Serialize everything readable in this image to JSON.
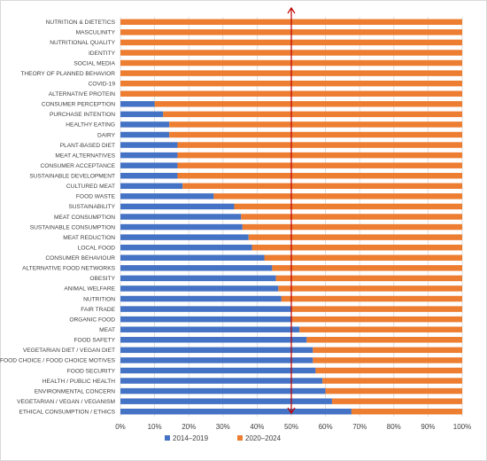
{
  "chart_data": {
    "type": "bar",
    "stacked": "percent",
    "orientation": "horizontal",
    "categories": [
      "NUTRITION & DIETETICS",
      "MASCULINITY",
      "NUTRITIONAL QUALITY",
      "IDENTITY",
      "SOCIAL MEDIA",
      "THEORY OF PLANNED BEHAVIOR",
      "COVID-19",
      "ALTERNATIVE PROTEIN",
      "CONSUMER PERCEPTION",
      "PURCHASE INTENTION",
      "HEALTHY EATING",
      "DAIRY",
      "PLANT-BASED DIET",
      "MEAT ALTERNATIVES",
      "CONSUMER ACCEPTANCE",
      "SUSTAINABLE DEVELOPMENT",
      "CULTURED MEAT",
      "FOOD WASTE",
      "SUSTAINABILITY",
      "MEAT CONSUMPTION",
      "SUSTAINABLE CONSUMPTION",
      "MEAT REDUCTION",
      "LOCAL FOOD",
      "CONSUMER BEHAVIOUR",
      "ALTERNATIVE FOOD NETWORKS",
      "OBESITY",
      "ANIMAL WELFARE",
      "NUTRITION",
      "FAIR TRADE",
      "ORGANIC FOOD",
      "MEAT",
      "FOOD SAFETY",
      "VEGETARIAN DIET / VEGAN DIET",
      "FOOD CHOICE / FOOD CHOICE MOTIVES",
      "FOOD SECURITY",
      "HEALTH / PUBLIC HEALTH",
      "ENVIRONMENTAL CONCERN",
      "VEGETARIAN / VEGAN / VEGANISM",
      "ETHICAL CONSUMPTION / ETHICS"
    ],
    "series": [
      {
        "name": "2014–2019",
        "color": "#4472C4",
        "values": [
          0,
          0,
          0,
          0,
          0,
          0,
          0,
          0,
          10,
          12.5,
          14.3,
          14.3,
          16.7,
          16.7,
          16.7,
          16.7,
          18.2,
          27.3,
          33.3,
          35.3,
          35.7,
          37.5,
          38.5,
          42.1,
          44.4,
          45.5,
          46.2,
          47.1,
          50,
          50,
          52.4,
          54.5,
          56.3,
          56.3,
          57.1,
          59.1,
          60,
          61.9,
          67.6
        ]
      },
      {
        "name": "2020–2024",
        "color": "#ED7D31",
        "values": [
          100,
          100,
          100,
          100,
          100,
          100,
          100,
          100,
          90,
          87.5,
          85.7,
          85.7,
          83.3,
          83.3,
          83.3,
          83.3,
          81.8,
          72.7,
          66.7,
          64.7,
          64.3,
          62.5,
          61.5,
          57.9,
          55.6,
          54.5,
          53.8,
          52.9,
          50,
          50,
          47.6,
          45.5,
          43.7,
          43.7,
          42.9,
          40.9,
          40,
          38.1,
          32.4
        ]
      }
    ],
    "x_ticks": [
      "0%",
      "10%",
      "20%",
      "30%",
      "40%",
      "50%",
      "60%",
      "70%",
      "80%",
      "90%",
      "100%"
    ],
    "xlim": [
      0,
      100
    ],
    "reference_line": {
      "value": 50,
      "color": "#C00000",
      "arrow": "up"
    },
    "grid": "vertical",
    "legend_position": "bottom",
    "title": "",
    "xlabel": "",
    "ylabel": ""
  }
}
